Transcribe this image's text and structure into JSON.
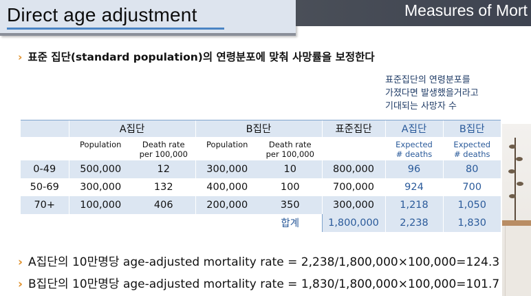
{
  "slide": {
    "title": "Direct age adjustment",
    "header_band_text": "Measures of Mort",
    "main_bullet": "표준 집단(standard population)의 연령분포에 맞춰 사망률을 보정한다",
    "note_lines": [
      "표준집단의 연령분포를",
      "가졌다면 발생했을거라고",
      "기대되는 사망자 수"
    ],
    "bullet_a": "A집단의 10만명당 age-adjusted mortality rate = 2,238/1,800,000×100,000=124.3",
    "bullet_b": "B집단의 10만명당 age-adjusted mortality rate = 1,830/1,800,000×100,000=101.7"
  },
  "table": {
    "group_headers": {
      "a_group": "A집단",
      "b_group": "B집단",
      "standard": "표준집단",
      "a_expected": "A집단",
      "b_expected": "B집단"
    },
    "sub_headers": {
      "population": "Population",
      "death_rate_l1": "Death rate",
      "death_rate_l2": "per 100,000",
      "expected_l1": "Expected",
      "expected_l2": "# deaths"
    },
    "rows": [
      {
        "age": "0-49",
        "a_pop": "500,000",
        "a_rate": "12",
        "b_pop": "300,000",
        "b_rate": "10",
        "std": "800,000",
        "a_exp": "96",
        "b_exp": "80"
      },
      {
        "age": "50-69",
        "a_pop": "300,000",
        "a_rate": "132",
        "b_pop": "400,000",
        "b_rate": "100",
        "std": "700,000",
        "a_exp": "924",
        "b_exp": "700"
      },
      {
        "age": "70+",
        "a_pop": "100,000",
        "a_rate": "406",
        "b_pop": "200,000",
        "b_rate": "350",
        "std": "300,000",
        "a_exp": "1,218",
        "b_exp": "1,050"
      }
    ],
    "total": {
      "label": "합계",
      "std": "1,800,000",
      "a_exp": "2,238",
      "b_exp": "1,830"
    }
  },
  "colors": {
    "accent_blue": "#2a5a9a",
    "band": "#dce6f2",
    "bullet_chevron": "#e0902a",
    "header_band": "#4a4f58"
  }
}
